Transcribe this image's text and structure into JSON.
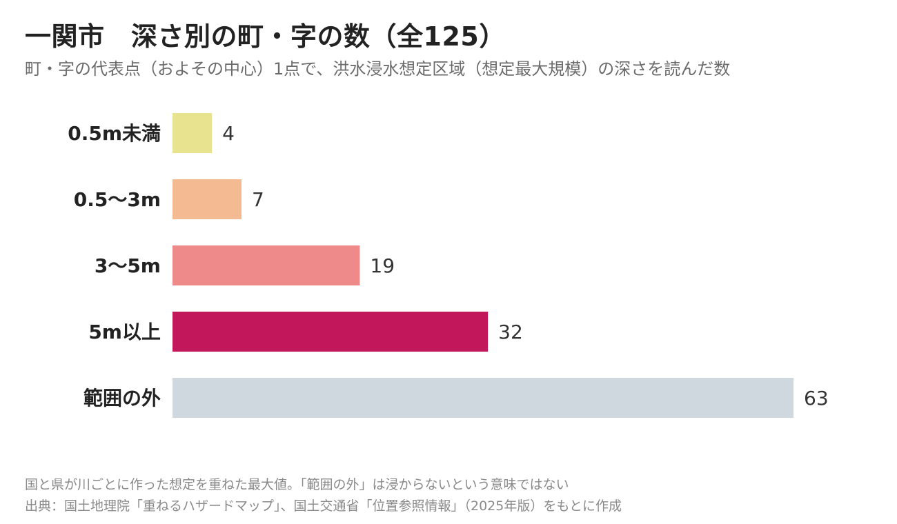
{
  "header": {
    "title": "一関市　深さ別の町・字の数（全125）",
    "subtitle": "町・字の代表点（およその中心）1点で、洪水浸水想定区域（想定最大規模）の深さを読んだ数"
  },
  "chart_data": {
    "type": "bar",
    "orientation": "horizontal",
    "categories": [
      "0.5m未満",
      "0.5〜3m",
      "3〜5m",
      "5m以上",
      "範囲の外"
    ],
    "values": [
      4,
      7,
      19,
      32,
      63
    ],
    "value_labels": [
      "4",
      "7",
      "19",
      "32",
      "63"
    ],
    "colors": [
      "#e8e38f",
      "#f4bb93",
      "#ef8a8a",
      "#c2185b",
      "#cfd8de"
    ],
    "xlim": [
      0,
      63
    ],
    "grid": false,
    "legend": "none"
  },
  "footer": {
    "note": "国と県が川ごとに作った想定を重ねた最大値。「範囲の外」は浸からないという意味ではない",
    "source": "出典：国土地理院「重ねるハザードマップ」、国土交通省「位置参照情報」（2025年版）をもとに作成"
  }
}
